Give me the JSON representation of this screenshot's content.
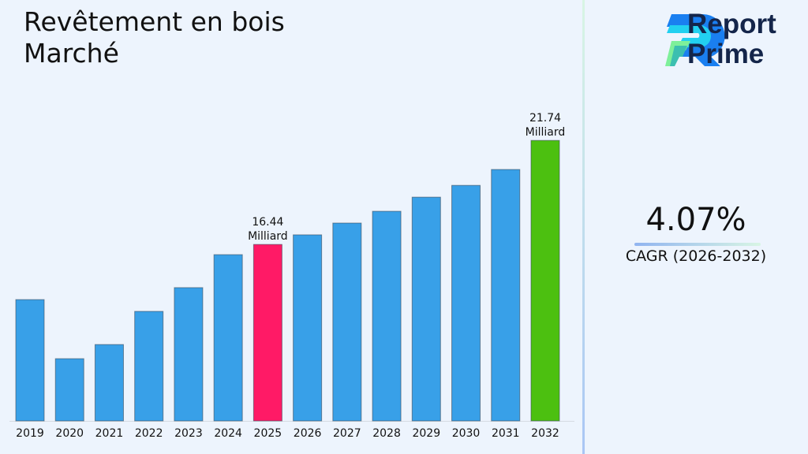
{
  "title_line1": "Revêtement en bois",
  "title_line2": "Marché",
  "logo": {
    "line1": "Report",
    "line2": "Prime"
  },
  "cagr": {
    "value": "4.07%",
    "label": "CAGR (2026-2032)"
  },
  "chart_data": {
    "type": "bar",
    "title": "Revêtement en bois Marché",
    "categories": [
      "2019",
      "2020",
      "2021",
      "2022",
      "2023",
      "2024",
      "2025",
      "2026",
      "2027",
      "2028",
      "2029",
      "2030",
      "2031",
      "2032"
    ],
    "values": [
      13.63,
      10.62,
      11.34,
      13.03,
      14.24,
      15.92,
      16.44,
      16.93,
      17.53,
      18.13,
      18.85,
      19.45,
      20.26,
      21.74
    ],
    "unit": "Milliard",
    "data_labels": [
      {
        "category": "2025",
        "value": "16.44",
        "unit": "Milliard"
      },
      {
        "category": "2032",
        "value": "21.74",
        "unit": "Milliard"
      }
    ],
    "colors": {
      "default": "#38a0e8",
      "highlight_2025": "#ff1a66",
      "highlight_2032": "#4cc010"
    },
    "grid": false,
    "legend": "none"
  }
}
